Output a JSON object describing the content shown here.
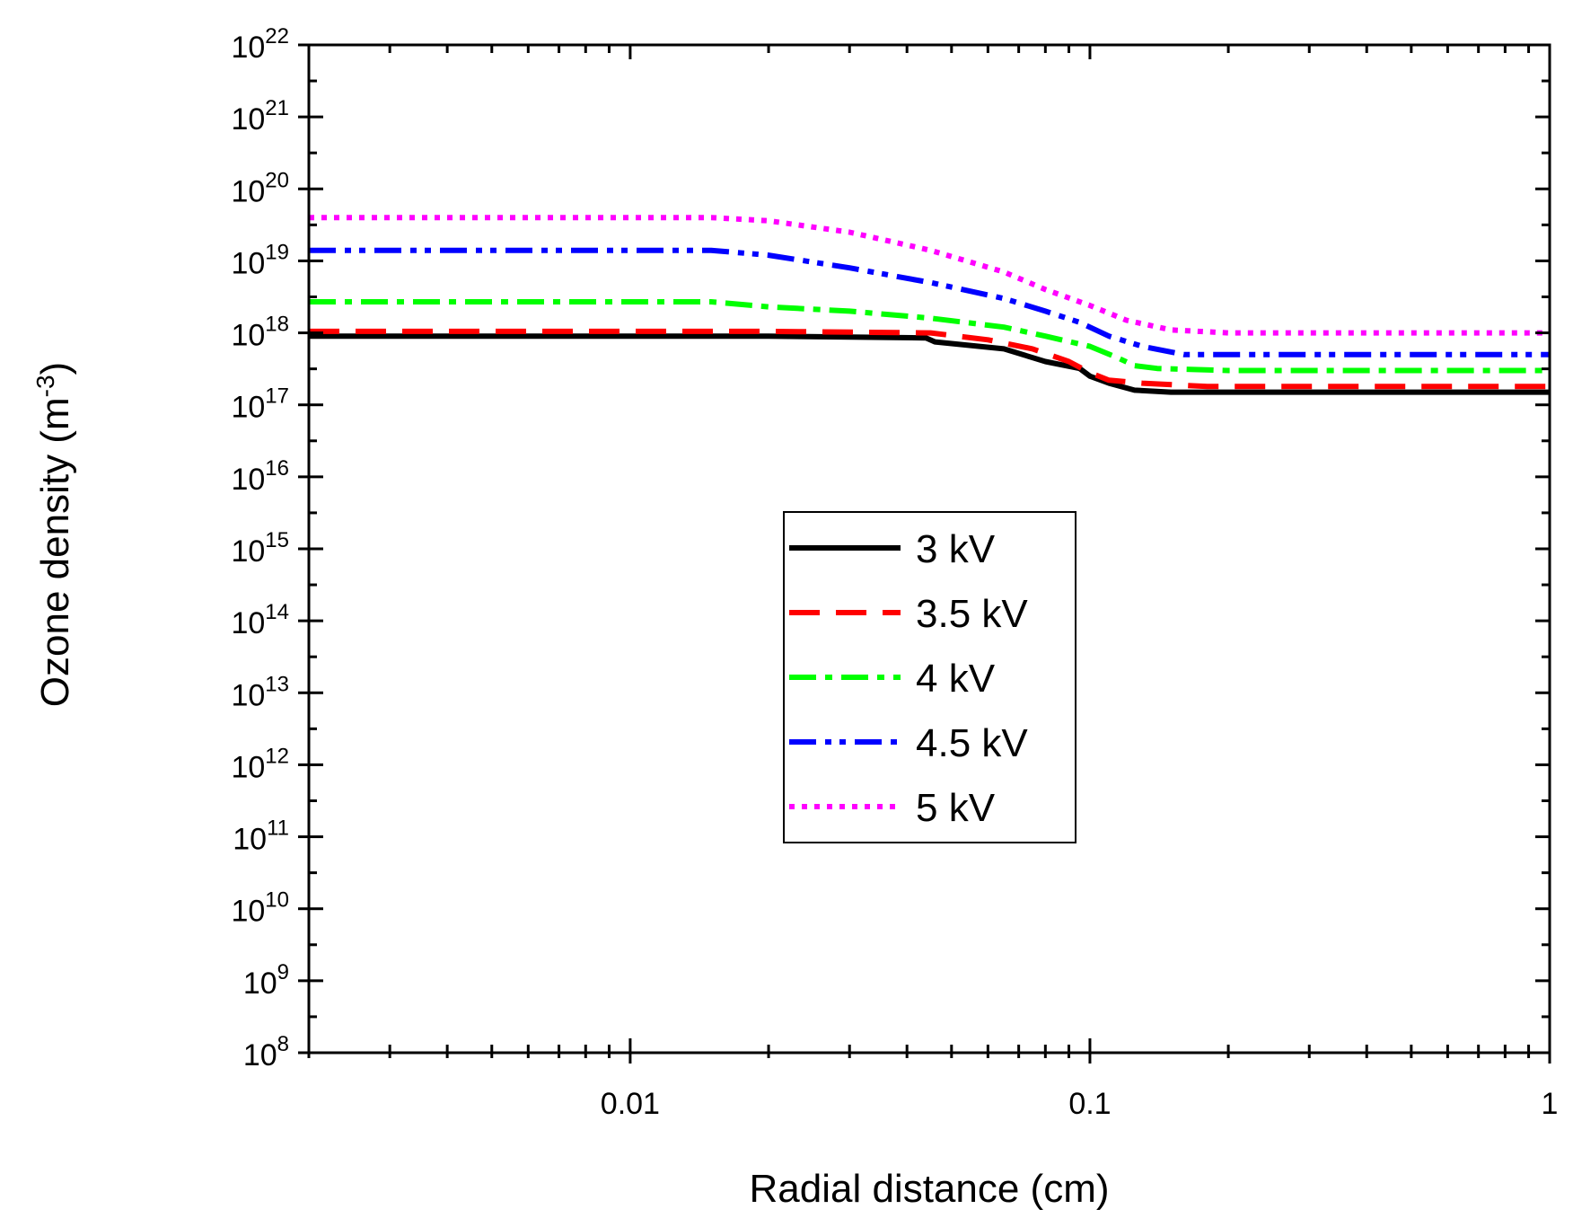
{
  "chart_data": {
    "type": "line",
    "xlabel": "Radial distance (cm)",
    "ylabel_main": "Ozone density (m",
    "ylabel_sup": "-3",
    "ylabel_close": ")",
    "x_scale": "log",
    "y_scale": "log",
    "xlim": [
      0.002,
      1
    ],
    "ylim_exp": [
      8,
      22
    ],
    "x_ticks": [
      {
        "value": 0.01,
        "label": "0.01"
      },
      {
        "value": 0.1,
        "label": "0.1"
      },
      {
        "value": 1,
        "label": "1"
      }
    ],
    "y_ticks": [
      {
        "exp": 8,
        "base": "10",
        "sup": "8"
      },
      {
        "exp": 9,
        "base": "10",
        "sup": "9"
      },
      {
        "exp": 10,
        "base": "10",
        "sup": "10"
      },
      {
        "exp": 11,
        "base": "10",
        "sup": "11"
      },
      {
        "exp": 12,
        "base": "10",
        "sup": "12"
      },
      {
        "exp": 13,
        "base": "10",
        "sup": "13"
      },
      {
        "exp": 14,
        "base": "10",
        "sup": "14"
      },
      {
        "exp": 15,
        "base": "10",
        "sup": "15"
      },
      {
        "exp": 16,
        "base": "10",
        "sup": "16"
      },
      {
        "exp": 17,
        "base": "10",
        "sup": "17"
      },
      {
        "exp": 18,
        "base": "10",
        "sup": "18"
      },
      {
        "exp": 19,
        "base": "10",
        "sup": "19"
      },
      {
        "exp": 20,
        "base": "10",
        "sup": "20"
      },
      {
        "exp": 21,
        "base": "10",
        "sup": "21"
      },
      {
        "exp": 22,
        "base": "10",
        "sup": "22"
      }
    ],
    "legend_position": "center",
    "series": [
      {
        "name": "3 kV",
        "color": "#000000",
        "style": "solid",
        "points": [
          [
            0.002,
            9e+17
          ],
          [
            0.02,
            9e+17
          ],
          [
            0.044,
            8.5e+17
          ],
          [
            0.046,
            7.5e+17
          ],
          [
            0.065,
            6e+17
          ],
          [
            0.08,
            4e+17
          ],
          [
            0.095,
            3.2e+17
          ],
          [
            0.1,
            2.5e+17
          ],
          [
            0.11,
            2e+17
          ],
          [
            0.125,
            1.6e+17
          ],
          [
            0.15,
            1.5e+17
          ],
          [
            1,
            1.5e+17
          ]
        ]
      },
      {
        "name": "3.5 kV",
        "color": "#ff0000",
        "style": "dash",
        "points": [
          [
            0.002,
            1.05e+18
          ],
          [
            0.02,
            1.05e+18
          ],
          [
            0.045,
            1e+18
          ],
          [
            0.06,
            8e+17
          ],
          [
            0.075,
            6e+17
          ],
          [
            0.09,
            4e+17
          ],
          [
            0.1,
            2.8e+17
          ],
          [
            0.11,
            2.2e+17
          ],
          [
            0.13,
            2e+17
          ],
          [
            0.18,
            1.8e+17
          ],
          [
            1,
            1.8e+17
          ]
        ]
      },
      {
        "name": "4 kV",
        "color": "#00ff00",
        "style": "dashdot",
        "points": [
          [
            0.002,
            2.7e+18
          ],
          [
            0.015,
            2.7e+18
          ],
          [
            0.02,
            2.3e+18
          ],
          [
            0.03,
            2e+18
          ],
          [
            0.045,
            1.6e+18
          ],
          [
            0.065,
            1.2e+18
          ],
          [
            0.08,
            9e+17
          ],
          [
            0.1,
            6.5e+17
          ],
          [
            0.115,
            4.5e+17
          ],
          [
            0.125,
            3.5e+17
          ],
          [
            0.14,
            3.2e+17
          ],
          [
            0.2,
            3e+17
          ],
          [
            1,
            3e+17
          ]
        ]
      },
      {
        "name": "4.5 kV",
        "color": "#0000ff",
        "style": "dashdotdot",
        "points": [
          [
            0.002,
            1.4e+19
          ],
          [
            0.015,
            1.4e+19
          ],
          [
            0.02,
            1.2e+19
          ],
          [
            0.03,
            8e+18
          ],
          [
            0.045,
            5e+18
          ],
          [
            0.065,
            3e+18
          ],
          [
            0.08,
            2e+18
          ],
          [
            0.095,
            1.4e+18
          ],
          [
            0.11,
            9e+17
          ],
          [
            0.13,
            6.5e+17
          ],
          [
            0.16,
            5e+17
          ],
          [
            0.2,
            5e+17
          ],
          [
            1,
            5e+17
          ]
        ]
      },
      {
        "name": "5 kV",
        "color": "#ff00ff",
        "style": "dot",
        "points": [
          [
            0.002,
            4e+19
          ],
          [
            0.015,
            4e+19
          ],
          [
            0.02,
            3.6e+19
          ],
          [
            0.03,
            2.5e+19
          ],
          [
            0.045,
            1.4e+19
          ],
          [
            0.065,
            7e+18
          ],
          [
            0.08,
            4e+18
          ],
          [
            0.1,
            2.4e+18
          ],
          [
            0.12,
            1.5e+18
          ],
          [
            0.15,
            1.1e+18
          ],
          [
            0.2,
            1e+18
          ],
          [
            1,
            1e+18
          ]
        ]
      }
    ]
  }
}
